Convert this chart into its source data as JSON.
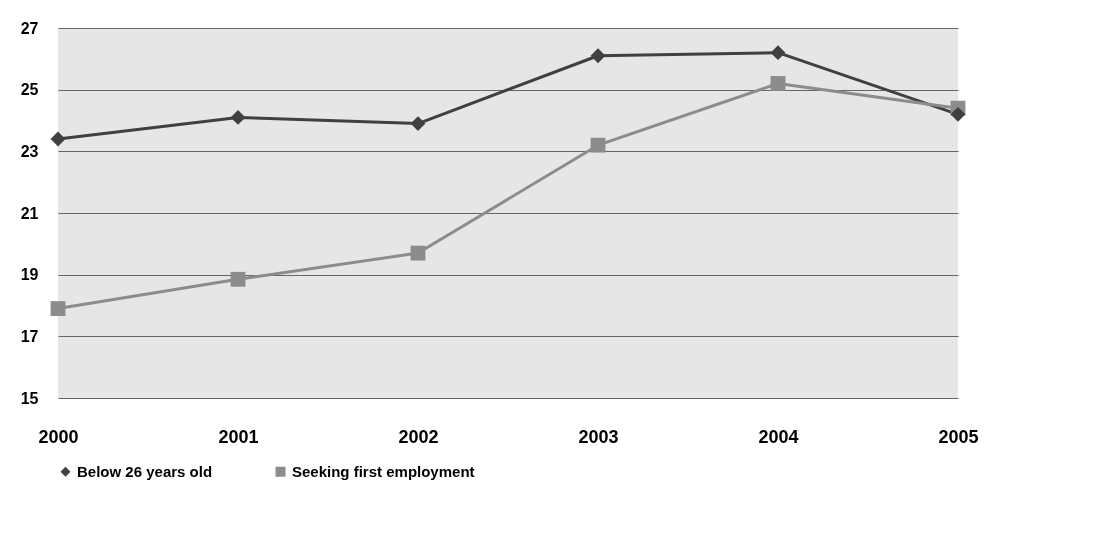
{
  "chart_data": {
    "type": "line",
    "categories": [
      "2000",
      "2001",
      "2002",
      "2003",
      "2004",
      "2005"
    ],
    "series": [
      {
        "name": "Below 26 years old",
        "color": "#404040",
        "marker": "diamond",
        "values": [
          23.4,
          24.1,
          23.9,
          26.1,
          26.2,
          24.2
        ]
      },
      {
        "name": "Seeking first employment",
        "color": "#8c8c8c",
        "marker": "square",
        "values": [
          17.9,
          18.85,
          19.7,
          23.2,
          25.2,
          24.4
        ]
      }
    ],
    "ylim": [
      15,
      27
    ],
    "yticks": [
      15,
      17,
      19,
      21,
      23,
      25,
      27
    ],
    "grid": "y",
    "legend": "bottom"
  }
}
